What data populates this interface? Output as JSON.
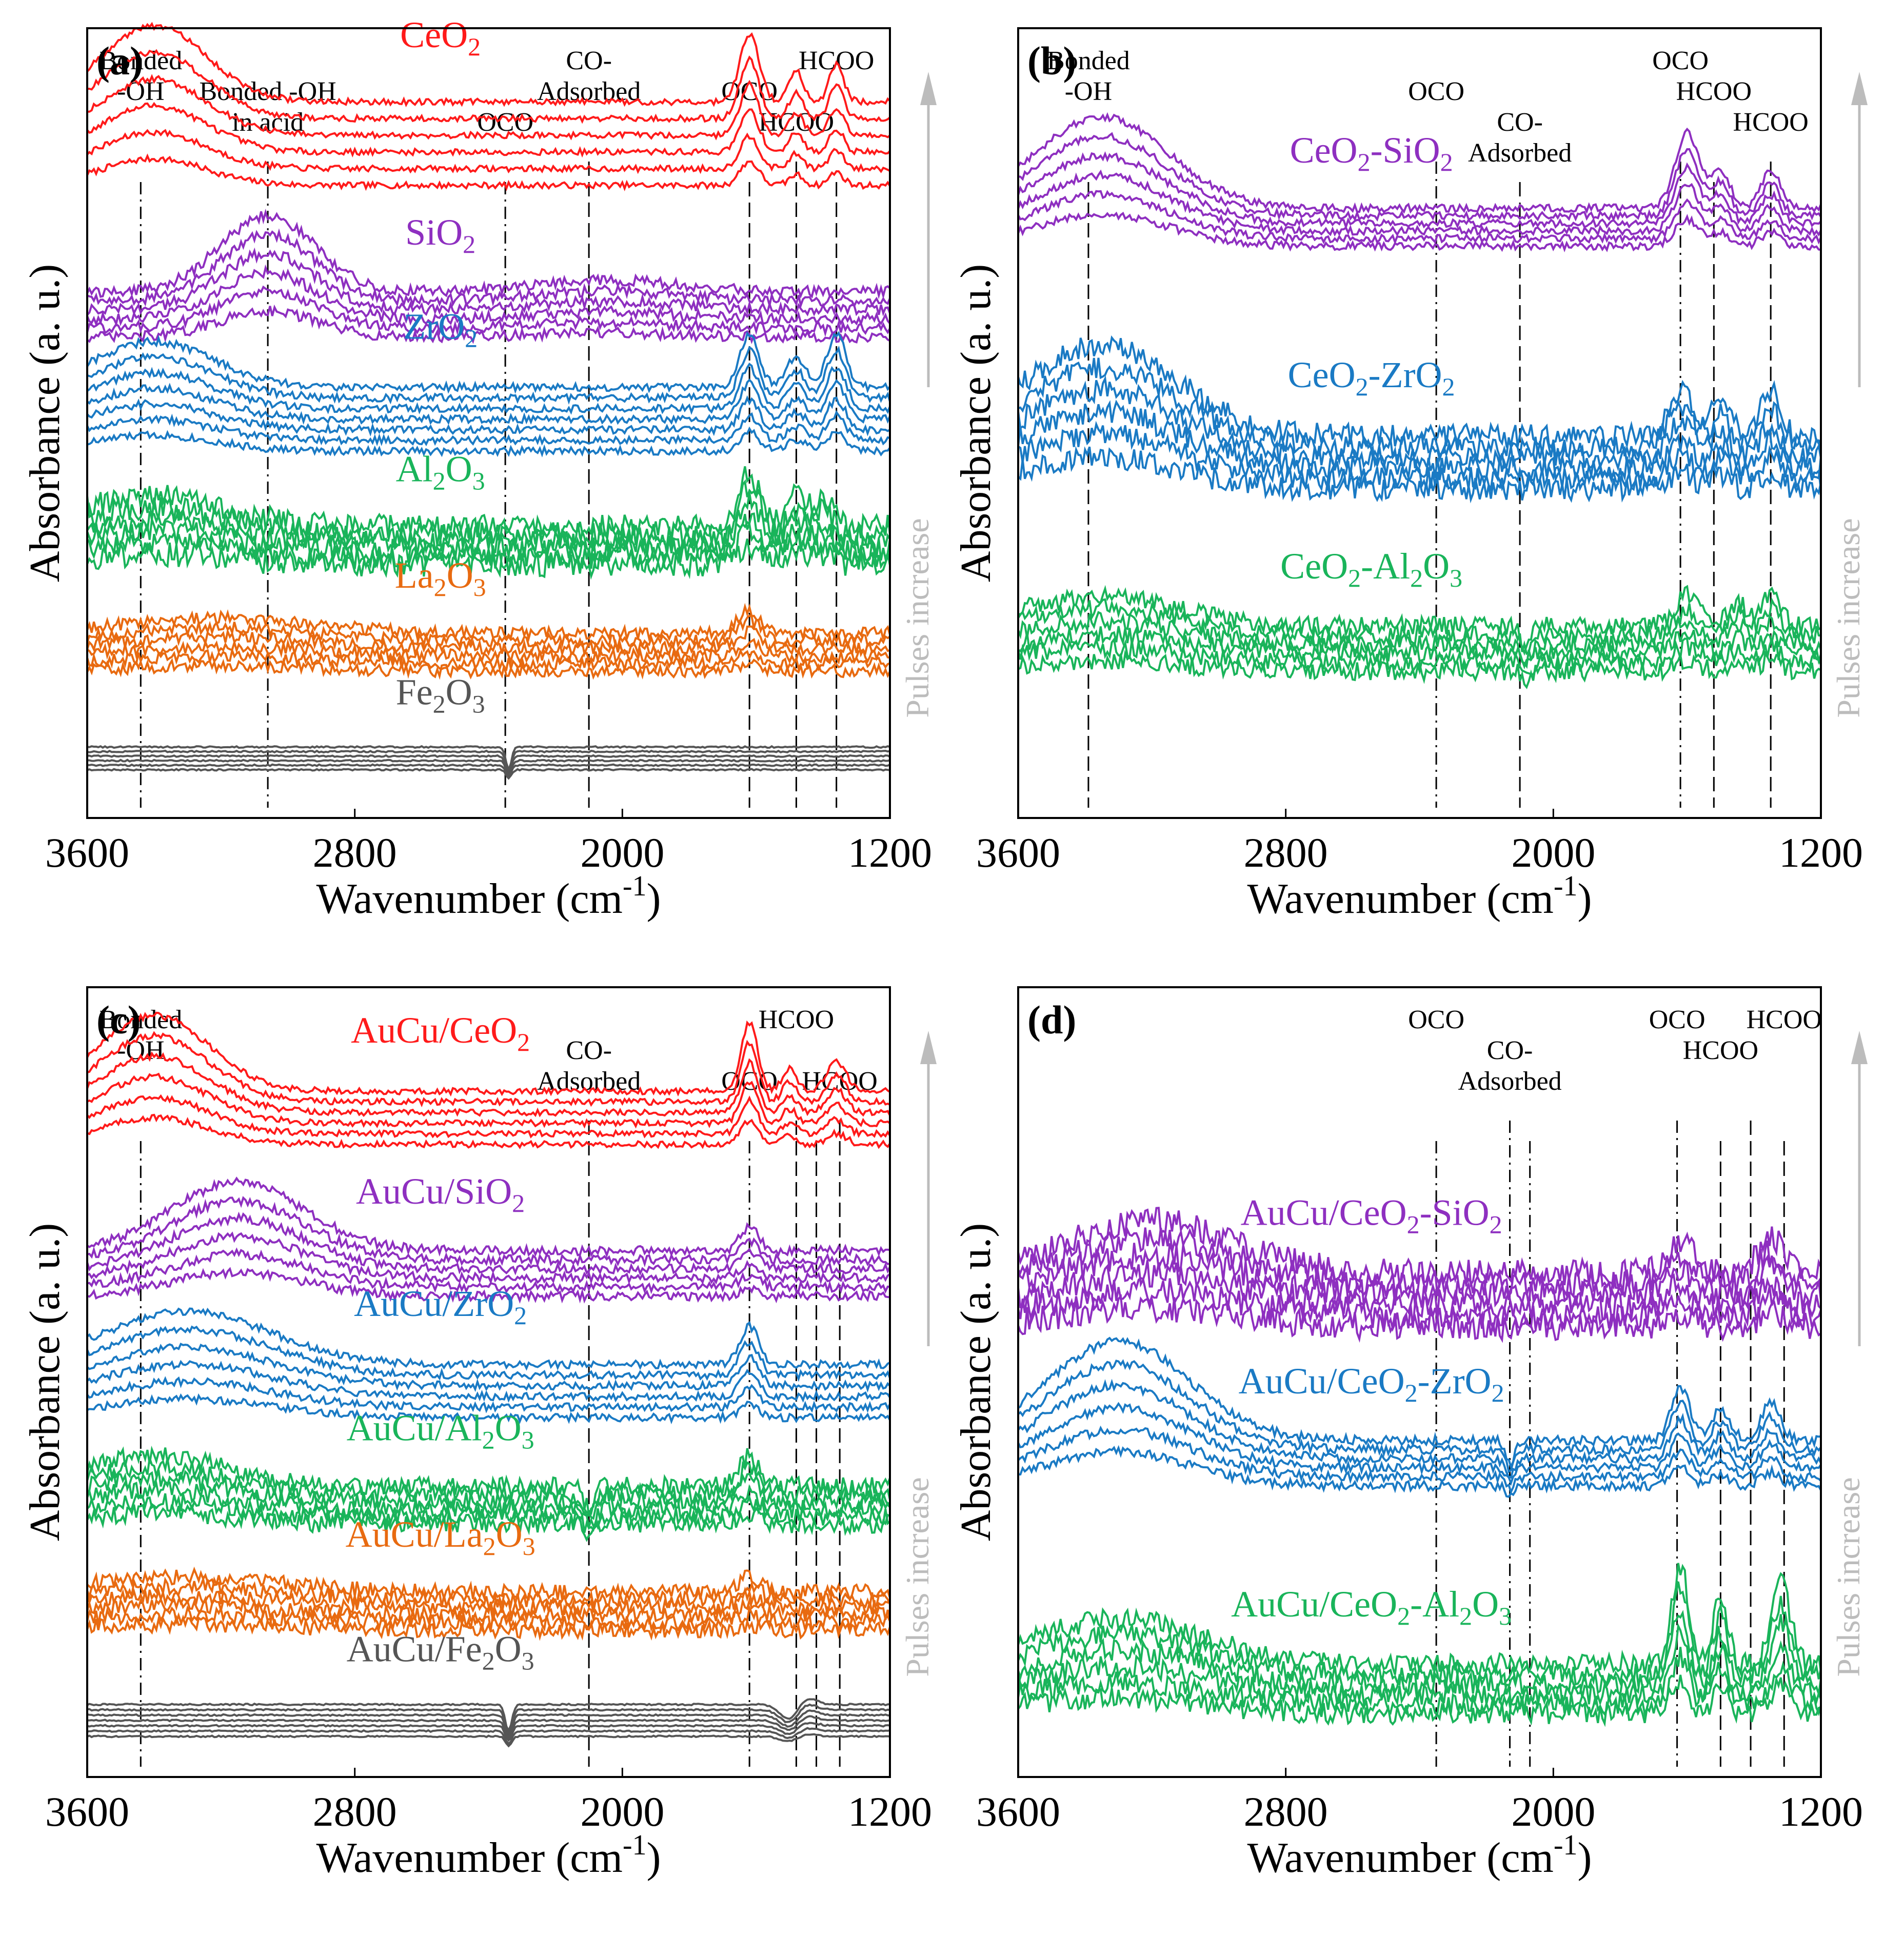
{
  "figure": {
    "colors": {
      "red": "#ff1a1a",
      "purple": "#8e2fc0",
      "blue": "#1a7ac4",
      "green": "#19b45a",
      "orange": "#e86a10",
      "gray": "#555555",
      "arrow": "#bcbcbc",
      "axis": "#000000"
    }
  },
  "chart_data": [
    {
      "type": "line",
      "panel_label": "(a)",
      "xlabel_main": "Wavenumber (cm",
      "xlabel_sup": "-1",
      "xlabel_close": ")",
      "ylabel": "Absorbance (a. u.)",
      "arrow_label": "Pulses increase",
      "xlim": [
        3600,
        1200
      ],
      "xticks": [
        "3600",
        "2800",
        "2000",
        "1200"
      ],
      "guides": [
        {
          "x": 3440,
          "lines": [
            "Bonded",
            "-OH"
          ],
          "style": "dashdot"
        },
        {
          "x": 3060,
          "lines": [
            "Bonded -OH",
            "in acid"
          ],
          "style": "dashdot"
        },
        {
          "x": 2350,
          "lines": [
            "OCO"
          ],
          "style": "dashdot"
        },
        {
          "x": 2100,
          "lines": [
            "CO-",
            "Adsorbed"
          ],
          "style": "dash"
        },
        {
          "x": 1620,
          "lines": [
            "OCO"
          ],
          "style": "dash"
        },
        {
          "x": 1480,
          "lines": [
            "HCOO"
          ],
          "style": "dash"
        },
        {
          "x": 1360,
          "lines": [
            "HCOO"
          ],
          "style": "dash"
        }
      ],
      "series": [
        {
          "name": "CeO2",
          "label": [
            "CeO",
            "2",
            ""
          ],
          "color": "red",
          "base": 0.82,
          "n": 6,
          "spacing": 0.022,
          "noise": 0.004,
          "peaks": [
            [
              3400,
              220,
              0.1
            ],
            [
              1620,
              40,
              0.09
            ],
            [
              1480,
              30,
              0.04
            ],
            [
              1360,
              30,
              0.05
            ]
          ]
        },
        {
          "name": "SiO2",
          "label": [
            "SiO",
            "2",
            ""
          ],
          "color": "purple",
          "base": 0.62,
          "n": 6,
          "spacing": 0.012,
          "noise": 0.007,
          "peaks": [
            [
              3060,
              200,
              0.1
            ],
            [
              2050,
              300,
              0.015
            ]
          ]
        },
        {
          "name": "ZrO2",
          "label": [
            "ZrO",
            "2",
            ""
          ],
          "color": "blue",
          "base": 0.47,
          "n": 7,
          "spacing": 0.014,
          "noise": 0.005,
          "peaks": [
            [
              3400,
              250,
              0.06
            ],
            [
              1620,
              40,
              0.07
            ],
            [
              1480,
              40,
              0.04
            ],
            [
              1360,
              40,
              0.07
            ]
          ]
        },
        {
          "name": "Al2O3",
          "label": [
            "Al",
            "2",
            "O",
            "3",
            ""
          ],
          "color": "green",
          "base": 0.32,
          "n": 6,
          "spacing": 0.01,
          "noise": 0.016,
          "peaks": [
            [
              3400,
              300,
              0.04
            ],
            [
              1620,
              45,
              0.07
            ],
            [
              1480,
              40,
              0.04
            ],
            [
              1400,
              40,
              0.04
            ]
          ]
        },
        {
          "name": "La2O3",
          "label": [
            "La",
            "2",
            "O",
            "3",
            ""
          ],
          "color": "orange",
          "base": 0.18,
          "n": 6,
          "spacing": 0.01,
          "noise": 0.008,
          "peaks": [
            [
              3200,
              400,
              0.02
            ],
            [
              1620,
              50,
              0.03
            ]
          ]
        },
        {
          "name": "Fe2O3",
          "label": [
            "Fe",
            "2",
            "O",
            "3",
            ""
          ],
          "color": "gray",
          "base": 0.05,
          "n": 6,
          "spacing": 0.006,
          "noise": 0.001,
          "peaks": [
            [
              2340,
              12,
              -0.03
            ]
          ]
        }
      ]
    },
    {
      "type": "line",
      "panel_label": "(b)",
      "xlabel_main": "Wavenumber (cm",
      "xlabel_sup": "-1",
      "xlabel_close": ")",
      "ylabel": "Absorbance (a. u.)",
      "arrow_label": "Pulses increase",
      "xlim": [
        3600,
        1200
      ],
      "xticks": [
        "3600",
        "2800",
        "2000",
        "1200"
      ],
      "guides": [
        {
          "x": 3390,
          "lines": [
            "Bonded",
            "-OH"
          ],
          "style": "dash"
        },
        {
          "x": 2350,
          "lines": [
            "OCO"
          ],
          "style": "dashdot"
        },
        {
          "x": 2100,
          "lines": [
            "CO-",
            "Adsorbed"
          ],
          "style": "dash"
        },
        {
          "x": 1620,
          "lines": [
            "OCO"
          ],
          "style": "dashdot"
        },
        {
          "x": 1520,
          "lines": [
            "HCOO"
          ],
          "style": "dash"
        },
        {
          "x": 1350,
          "lines": [
            "HCOO"
          ],
          "style": "dash"
        }
      ],
      "series": [
        {
          "name": "CeO2-SiO2",
          "label": [
            "CeO",
            "2",
            "-SiO",
            "2",
            ""
          ],
          "color": "purple",
          "base": 0.74,
          "n": 6,
          "spacing": 0.01,
          "noise": 0.005,
          "peaks": [
            [
              3350,
              280,
              0.12
            ],
            [
              1600,
              50,
              0.1
            ],
            [
              1500,
              40,
              0.05
            ],
            [
              1350,
              40,
              0.05
            ]
          ]
        },
        {
          "name": "CeO2-ZrO2",
          "label": [
            "CeO",
            "2",
            "-ZrO",
            "2",
            ""
          ],
          "color": "blue",
          "base": 0.42,
          "n": 6,
          "spacing": 0.014,
          "noise": 0.015,
          "peaks": [
            [
              3350,
              320,
              0.12
            ],
            [
              1620,
              50,
              0.06
            ],
            [
              1500,
              40,
              0.05
            ],
            [
              1350,
              40,
              0.06
            ]
          ]
        },
        {
          "name": "CeO2-Al2O3",
          "label": [
            "CeO",
            "2",
            "-Al",
            "2",
            "O",
            "3",
            ""
          ],
          "color": "green",
          "base": 0.18,
          "n": 6,
          "spacing": 0.012,
          "noise": 0.012,
          "peaks": [
            [
              3350,
              320,
              0.04
            ],
            [
              1600,
              50,
              0.04
            ],
            [
              1450,
              40,
              0.03
            ],
            [
              1350,
              40,
              0.04
            ],
            [
              2080,
              20,
              -0.03
            ]
          ]
        }
      ]
    },
    {
      "type": "line",
      "panel_label": "(c)",
      "xlabel_main": "Wavenumber (cm",
      "xlabel_sup": "-1",
      "xlabel_close": ")",
      "ylabel": "Absorbance (a. u.)",
      "arrow_label": "Pulses increase",
      "xlim": [
        3600,
        1200
      ],
      "xticks": [
        "3600",
        "2800",
        "2000",
        "1200"
      ],
      "guides": [
        {
          "x": 3440,
          "lines": [
            "Bonded",
            "-OH"
          ],
          "style": "dashdot"
        },
        {
          "x": 2100,
          "lines": [
            "CO-",
            "Adsorbed"
          ],
          "style": "dash"
        },
        {
          "x": 1620,
          "lines": [
            "OCO"
          ],
          "style": "dashdot"
        },
        {
          "x": 1480,
          "lines": [
            "HCOO"
          ],
          "style": "dash"
        },
        {
          "x": 1420,
          "lines": [],
          "style": "dash"
        },
        {
          "x": 1350,
          "lines": [
            "HCOO"
          ],
          "style": "dash"
        }
      ],
      "series": [
        {
          "name": "AuCu/CeO2",
          "label": [
            "AuCu/CeO",
            "2",
            ""
          ],
          "color": "red",
          "base": 0.82,
          "n": 6,
          "spacing": 0.014,
          "noise": 0.004,
          "peaks": [
            [
              3400,
              230,
              0.1
            ],
            [
              1620,
              35,
              0.09
            ],
            [
              1500,
              30,
              0.03
            ],
            [
              1360,
              40,
              0.04
            ]
          ]
        },
        {
          "name": "AuCu/SiO2",
          "label": [
            "AuCu/SiO",
            "2",
            ""
          ],
          "color": "purple",
          "base": 0.62,
          "n": 6,
          "spacing": 0.012,
          "noise": 0.006,
          "peaks": [
            [
              3150,
              280,
              0.09
            ],
            [
              1620,
              40,
              0.03
            ]
          ]
        },
        {
          "name": "AuCu/ZrO2",
          "label": [
            "AuCu/ZrO",
            "2",
            ""
          ],
          "color": "blue",
          "base": 0.46,
          "n": 6,
          "spacing": 0.014,
          "noise": 0.005,
          "peaks": [
            [
              3300,
              350,
              0.07
            ],
            [
              1620,
              40,
              0.05
            ]
          ]
        },
        {
          "name": "AuCu/Al2O3",
          "label": [
            "AuCu/Al",
            "2",
            "O",
            "3",
            ""
          ],
          "color": "green",
          "base": 0.32,
          "n": 6,
          "spacing": 0.01,
          "noise": 0.012,
          "peaks": [
            [
              3400,
              300,
              0.04
            ],
            [
              1620,
              40,
              0.04
            ],
            [
              2100,
              25,
              -0.03
            ]
          ]
        },
        {
          "name": "AuCu/La2O3",
          "label": [
            "AuCu/La",
            "2",
            "O",
            "3",
            ""
          ],
          "color": "orange",
          "base": 0.18,
          "n": 6,
          "spacing": 0.01,
          "noise": 0.01,
          "peaks": [
            [
              3300,
              400,
              0.02
            ],
            [
              1620,
              50,
              0.02
            ]
          ]
        },
        {
          "name": "AuCu/Fe2O3",
          "label": [
            "AuCu/Fe",
            "2",
            "O",
            "3",
            ""
          ],
          "color": "gray",
          "base": 0.04,
          "n": 7,
          "spacing": 0.007,
          "noise": 0.001,
          "peaks": [
            [
              2340,
              14,
              -0.035
            ],
            [
              1500,
              40,
              -0.02
            ],
            [
              1450,
              40,
              0.01
            ]
          ]
        }
      ]
    },
    {
      "type": "line",
      "panel_label": "(d)",
      "xlabel_main": "Wavenumber (cm",
      "xlabel_sup": "-1",
      "xlabel_close": ")",
      "ylabel": "Absorbance (a. u.)",
      "arrow_label": "Pulses increase",
      "xlim": [
        3600,
        1200
      ],
      "xticks": [
        "3600",
        "2800",
        "2000",
        "1200"
      ],
      "guides": [
        {
          "x": 2350,
          "lines": [
            "OCO"
          ],
          "style": "dashdot"
        },
        {
          "x": 2130,
          "lines": [
            "CO-",
            "Adsorbed"
          ],
          "style": "dashdot"
        },
        {
          "x": 2070,
          "lines": [],
          "style": "dashdot"
        },
        {
          "x": 1630,
          "lines": [
            "OCO"
          ],
          "style": "dashdot"
        },
        {
          "x": 1500,
          "lines": [
            "HCOO"
          ],
          "style": "dash"
        },
        {
          "x": 1410,
          "lines": [],
          "style": "dash"
        },
        {
          "x": 1310,
          "lines": [
            "HCOO"
          ],
          "style": "dash"
        }
      ],
      "series": [
        {
          "name": "AuCu/CeO2-SiO2",
          "label": [
            "AuCu/CeO",
            "2",
            "-SiO",
            "2",
            ""
          ],
          "color": "purple",
          "base": 0.58,
          "n": 6,
          "spacing": 0.014,
          "noise": 0.018,
          "peaks": [
            [
              3200,
              350,
              0.07
            ],
            [
              1620,
              60,
              0.04
            ],
            [
              1350,
              50,
              0.05
            ]
          ]
        },
        {
          "name": "AuCu/CeO2-ZrO2",
          "label": [
            "AuCu/CeO",
            "2",
            "-ZrO",
            "2",
            ""
          ],
          "color": "blue",
          "base": 0.37,
          "n": 6,
          "spacing": 0.012,
          "noise": 0.006,
          "peaks": [
            [
              3300,
              300,
              0.13
            ],
            [
              1620,
              40,
              0.07
            ],
            [
              1500,
              40,
              0.04
            ],
            [
              1350,
              40,
              0.05
            ],
            [
              2130,
              20,
              -0.03
            ]
          ]
        },
        {
          "name": "AuCu/CeO2-Al2O3",
          "label": [
            "AuCu/CeO",
            "2",
            "-Al",
            "2",
            "O",
            "3",
            ""
          ],
          "color": "green",
          "base": 0.07,
          "n": 6,
          "spacing": 0.013,
          "noise": 0.014,
          "peaks": [
            [
              3300,
              350,
              0.06
            ],
            [
              1620,
              35,
              0.13
            ],
            [
              1500,
              30,
              0.09
            ],
            [
              1320,
              40,
              0.11
            ]
          ]
        }
      ]
    }
  ]
}
